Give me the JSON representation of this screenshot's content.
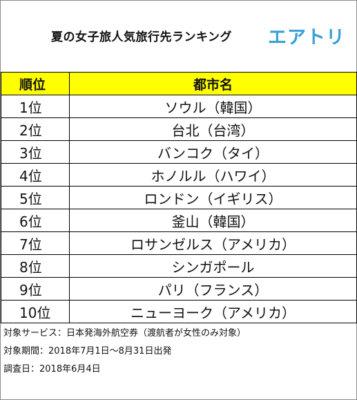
{
  "title": "夏の女子旅人気旅行先ランキング",
  "logo_text": "エアトリ",
  "colors": {
    "header_fill": "#ffff00",
    "logo": "#3aa0d8",
    "border": "#000000"
  },
  "table": {
    "headers": {
      "rank": "順位",
      "city": "都市名"
    },
    "rows": [
      {
        "rank": "1位",
        "city": "ソウル（韓国）"
      },
      {
        "rank": "2位",
        "city": "台北（台湾）"
      },
      {
        "rank": "3位",
        "city": "バンコク（タイ）"
      },
      {
        "rank": "4位",
        "city": "ホノルル（ハワイ）"
      },
      {
        "rank": "5位",
        "city": "ロンドン（イギリス）"
      },
      {
        "rank": "6位",
        "city": "釜山（韓国）"
      },
      {
        "rank": "7位",
        "city": "ロサンゼルス（アメリカ）"
      },
      {
        "rank": "8位",
        "city": "シンガポール"
      },
      {
        "rank": "9位",
        "city": "パリ（フランス）"
      },
      {
        "rank": "10位",
        "city": "ニューヨーク（アメリカ）"
      }
    ]
  },
  "notes": [
    "対象サービス：日本発海外航空券（渡航者が女性のみ対象）",
    "対象期間：2018年7月1日～8月31日出発",
    "調査日：2018年6月4日"
  ]
}
